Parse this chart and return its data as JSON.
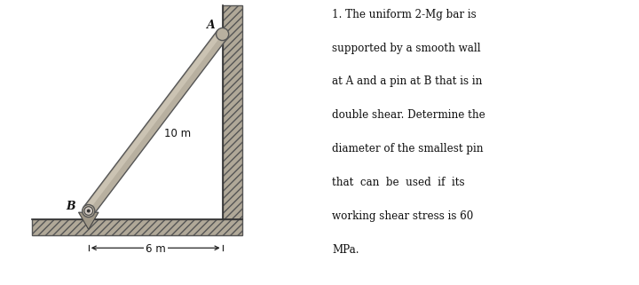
{
  "bg_color": "#e8e4d8",
  "wall_hatch_color": "#666666",
  "bar_face_color": "#b8b0a0",
  "bar_highlight_color": "#d0c8b8",
  "bar_edge_color": "#555555",
  "floor_face_color": "#b0a898",
  "text_color": "#111111",
  "label_10m": "10 m",
  "label_6m": "6 m",
  "label_A": "A",
  "label_B": "B",
  "problem_text_lines": [
    "1. The uniform 2-Mg bar is",
    "supported by a smooth wall",
    "at A and a pin at B that is in",
    "double shear. Determine the",
    "diameter of the smallest pin",
    "that  can  be  used  if  its",
    "working shear stress is 60",
    "MPa."
  ],
  "fig_width": 7.2,
  "fig_height": 3.21
}
